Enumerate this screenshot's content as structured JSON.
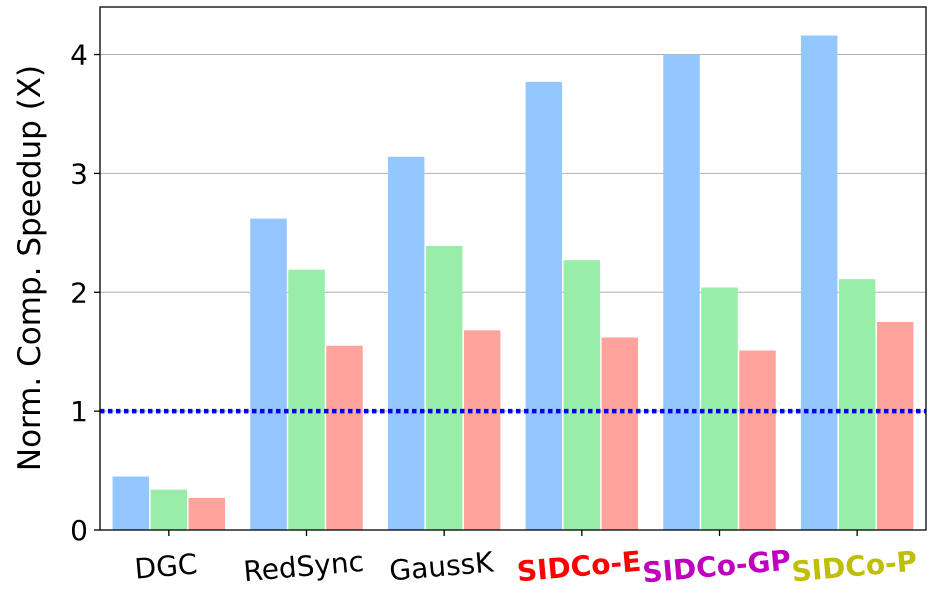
{
  "chart_data": {
    "type": "bar",
    "title": "",
    "xlabel": "",
    "ylabel": "Norm. Comp. Speedup (X)",
    "categories": [
      "DGC",
      "RedSync",
      "GaussK",
      "SIDCo-E",
      "SIDCo-GP",
      "SIDCo-P"
    ],
    "category_colors": [
      "#000000",
      "#000000",
      "#000000",
      "#ff0000",
      "#bf00bf",
      "#bfbf00"
    ],
    "series": [
      {
        "color": "#94c6ff",
        "values": [
          0.45,
          2.62,
          3.14,
          3.77,
          4.0,
          4.16
        ]
      },
      {
        "color": "#98eda8",
        "values": [
          0.34,
          2.19,
          2.39,
          2.27,
          2.04,
          2.11
        ]
      },
      {
        "color": "#ffa39c",
        "values": [
          0.27,
          1.55,
          1.68,
          1.62,
          1.51,
          1.75
        ]
      }
    ],
    "reference_line": {
      "y": 1,
      "color": "#0000ee",
      "style": "dotted"
    },
    "ylim": [
      0,
      4.4
    ],
    "yticks": [
      "0",
      "1",
      "2",
      "3",
      "4"
    ],
    "grid": "horizontal",
    "legend": "none"
  }
}
